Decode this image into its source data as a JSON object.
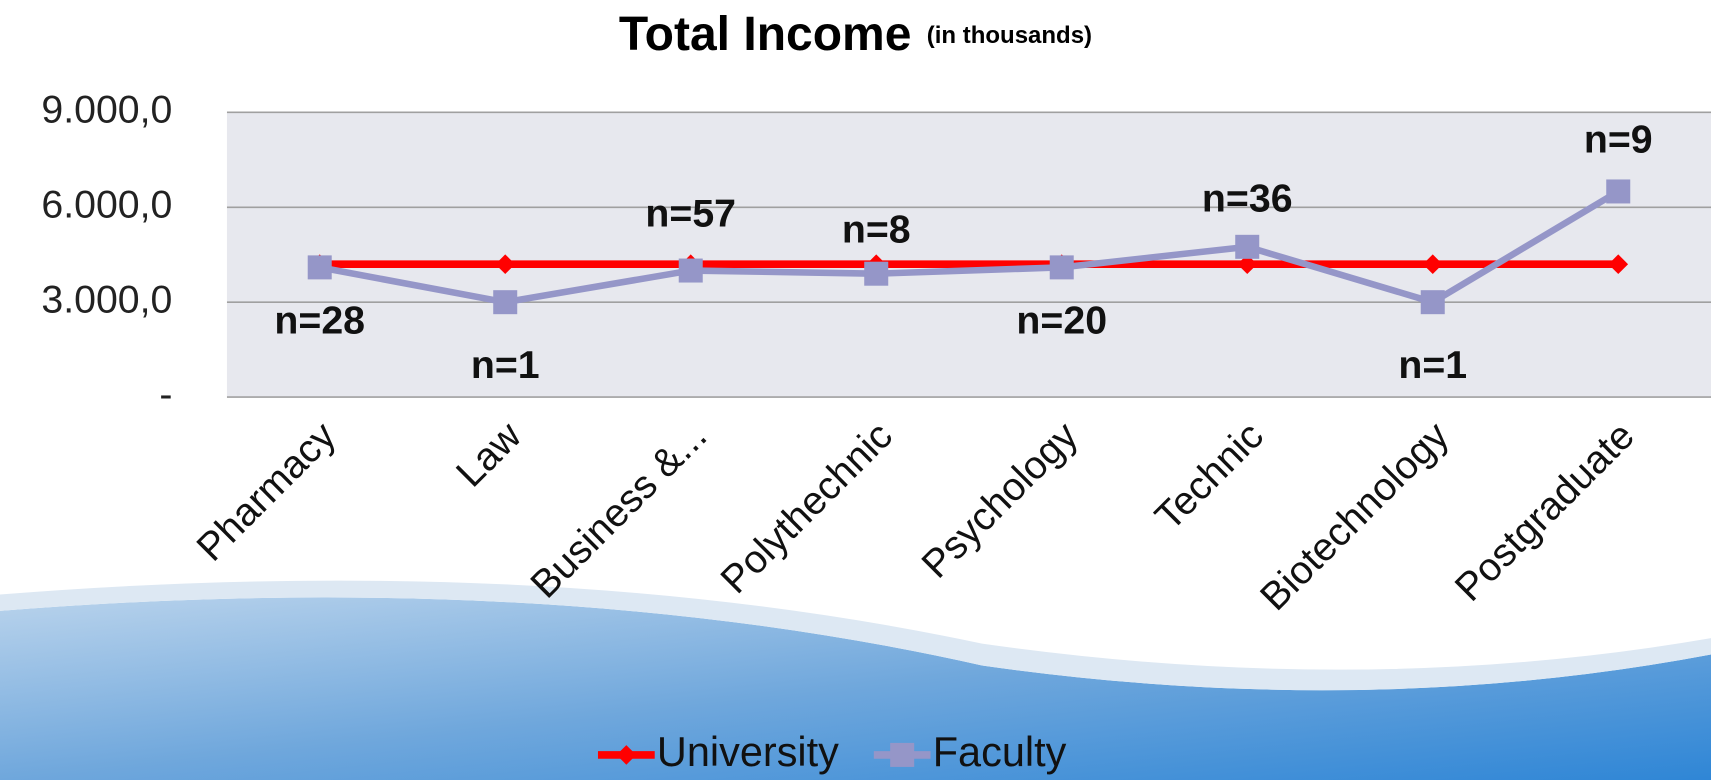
{
  "chart_data": {
    "type": "line",
    "title": "Total Income",
    "subtitle": "(in thousands)",
    "categories": [
      "Pharmacy",
      "Law",
      "Business &...",
      "Polythechnic",
      "Psychology",
      "Technic",
      "Biotechnology",
      "Postgraduate"
    ],
    "series": [
      {
        "name": "University",
        "color": "#ff0000",
        "marker": "diamond",
        "values": [
          4200,
          4200,
          4200,
          4200,
          4200,
          4200,
          4200,
          4200
        ]
      },
      {
        "name": "Faculty",
        "color": "#9596c8",
        "marker": "square",
        "values": [
          4100,
          3000,
          4000,
          3900,
          4100,
          4750,
          3000,
          6500
        ]
      }
    ],
    "annotations": [
      "n=28",
      "n=1",
      "n=57",
      "n=8",
      "n=20",
      "n=36",
      "n=1",
      "n=9"
    ],
    "ylim": [
      0,
      9000
    ],
    "yticks": [
      {
        "value": 0,
        "label": "-"
      },
      {
        "value": 3000,
        "label": "3.000,0"
      },
      {
        "value": 6000,
        "label": "6.000,0"
      },
      {
        "value": 9000,
        "label": "9.000,0"
      }
    ],
    "grid": true,
    "legend": "bottom"
  }
}
